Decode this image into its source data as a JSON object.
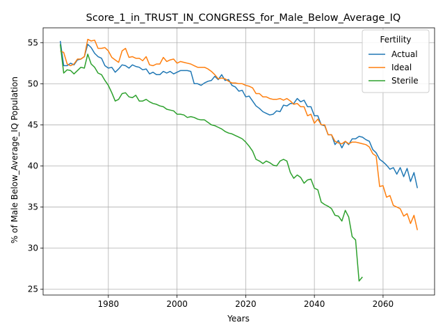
{
  "chart_data": {
    "type": "line",
    "title": "Score_1_in_TRUST_IN_CONGRESS_for_Male_Below_Average_IQ",
    "xlabel": "Years",
    "ylabel": "% of Male Below_Average_IQ Population",
    "xlim": [
      1961,
      2075
    ],
    "ylim": [
      24.3,
      56.8
    ],
    "xticks": [
      1980,
      2000,
      2020,
      2040,
      2060
    ],
    "yticks": [
      25,
      30,
      35,
      40,
      45,
      50,
      55
    ],
    "grid": true,
    "legend": {
      "title": "Fertility",
      "placement": "top-right"
    },
    "series": [
      {
        "name": "Actual",
        "color": "#1f77b4",
        "x": [
          1966,
          1967,
          1968,
          1969,
          1970,
          1971,
          1972,
          1973,
          1974,
          1975,
          1976,
          1977,
          1978,
          1979,
          1980,
          1981,
          1982,
          1983,
          1984,
          1985,
          1986,
          1987,
          1988,
          1989,
          1990,
          1991,
          1992,
          1993,
          1994,
          1995,
          1996,
          1997,
          1998,
          1999,
          2000,
          2001,
          2002,
          2003,
          2004,
          2005,
          2006,
          2007,
          2008,
          2009,
          2010,
          2011,
          2012,
          2013,
          2014,
          2015,
          2016,
          2017,
          2018,
          2019,
          2020,
          2021,
          2022,
          2023,
          2024,
          2025,
          2026,
          2027,
          2028,
          2029,
          2030,
          2031,
          2032,
          2033,
          2034,
          2035,
          2036,
          2037,
          2038,
          2039,
          2040,
          2041,
          2042,
          2043,
          2044,
          2045,
          2046,
          2047,
          2048,
          2049,
          2050,
          2051,
          2052,
          2053,
          2054,
          2055,
          2056,
          2057,
          2058,
          2059,
          2060,
          2061,
          2062,
          2063,
          2064,
          2065,
          2066,
          2067,
          2068,
          2069,
          2070
        ],
        "values": [
          55.2,
          52.2,
          52.2,
          52.5,
          52.3,
          52.9,
          53.0,
          53.3,
          54.8,
          54.4,
          53.7,
          53.3,
          53.1,
          52.2,
          51.9,
          52.0,
          51.4,
          51.8,
          52.3,
          52.2,
          51.9,
          52.3,
          52.1,
          52.0,
          51.7,
          51.8,
          51.2,
          51.4,
          51.1,
          51.1,
          51.5,
          51.3,
          51.5,
          51.2,
          51.4,
          51.6,
          51.6,
          51.6,
          51.5,
          50.0,
          50.0,
          49.8,
          50.1,
          50.3,
          50.4,
          50.9,
          50.5,
          51.1,
          50.4,
          50.5,
          49.8,
          49.6,
          49.1,
          49.2,
          48.4,
          48.5,
          47.9,
          47.3,
          47.0,
          46.6,
          46.4,
          46.2,
          46.3,
          46.7,
          46.6,
          47.4,
          47.3,
          47.6,
          47.6,
          48.2,
          47.8,
          48.0,
          47.2,
          47.2,
          46.1,
          46.1,
          45.0,
          44.9,
          43.8,
          43.8,
          42.6,
          43.1,
          42.2,
          43.0,
          42.6,
          43.3,
          43.3,
          43.6,
          43.5,
          43.2,
          43.0,
          42.0,
          41.6,
          40.8,
          40.5,
          40.1,
          39.6,
          39.8,
          39.0,
          39.8,
          38.7,
          39.7,
          38.1,
          39.2,
          37.3
        ]
      },
      {
        "name": "Ideal",
        "color": "#ff7f0e",
        "x": [
          1966,
          1967,
          1968,
          1969,
          1970,
          1971,
          1972,
          1973,
          1974,
          1975,
          1976,
          1977,
          1978,
          1979,
          1980,
          1981,
          1982,
          1983,
          1984,
          1985,
          1986,
          1987,
          1988,
          1989,
          1990,
          1991,
          1992,
          1993,
          1994,
          1995,
          1996,
          1997,
          1998,
          1999,
          2000,
          2001,
          2002,
          2003,
          2004,
          2005,
          2006,
          2007,
          2008,
          2009,
          2010,
          2011,
          2012,
          2013,
          2014,
          2015,
          2016,
          2017,
          2018,
          2019,
          2020,
          2021,
          2022,
          2023,
          2024,
          2025,
          2026,
          2027,
          2028,
          2029,
          2030,
          2031,
          2032,
          2033,
          2034,
          2035,
          2036,
          2037,
          2038,
          2039,
          2040,
          2041,
          2042,
          2043,
          2044,
          2045,
          2046,
          2047,
          2048,
          2049,
          2050,
          2051,
          2052,
          2053,
          2054,
          2055,
          2056,
          2057,
          2058,
          2059,
          2060,
          2061,
          2062,
          2063,
          2064,
          2065,
          2066,
          2067,
          2068,
          2069,
          2070
        ],
        "values": [
          54.0,
          53.8,
          52.4,
          52.2,
          52.4,
          53.0,
          53.0,
          53.3,
          55.4,
          55.2,
          55.3,
          54.3,
          54.3,
          54.4,
          54.0,
          53.2,
          52.9,
          52.6,
          54.0,
          54.3,
          53.2,
          53.3,
          53.1,
          53.1,
          52.8,
          53.3,
          52.3,
          52.2,
          52.4,
          52.4,
          53.2,
          52.7,
          52.9,
          53.0,
          52.5,
          52.7,
          52.6,
          52.5,
          52.4,
          52.2,
          52.0,
          52.0,
          52.0,
          51.8,
          51.5,
          51.1,
          50.6,
          50.7,
          50.6,
          50.3,
          50.1,
          50.1,
          50.0,
          50.0,
          49.8,
          49.7,
          49.5,
          48.8,
          48.8,
          48.4,
          48.4,
          48.2,
          48.1,
          48.1,
          48.2,
          48.0,
          48.2,
          47.9,
          47.5,
          47.6,
          47.2,
          47.2,
          46.1,
          46.3,
          45.2,
          45.7,
          45.0,
          45.0,
          43.8,
          43.8,
          43.0,
          42.8,
          42.7,
          43.0,
          42.7,
          42.9,
          42.9,
          42.8,
          42.7,
          42.6,
          42.3,
          41.5,
          41.2,
          37.5,
          37.6,
          36.2,
          36.4,
          35.2,
          35.0,
          34.8,
          33.9,
          34.2,
          33.0,
          34.0,
          32.2
        ]
      },
      {
        "name": "Sterile",
        "color": "#2ca02c",
        "x": [
          1966,
          1967,
          1968,
          1969,
          1970,
          1971,
          1972,
          1973,
          1974,
          1975,
          1976,
          1977,
          1978,
          1979,
          1980,
          1981,
          1982,
          1983,
          1984,
          1985,
          1986,
          1987,
          1988,
          1989,
          1990,
          1991,
          1992,
          1993,
          1994,
          1995,
          1996,
          1997,
          1998,
          1999,
          2000,
          2001,
          2002,
          2003,
          2004,
          2005,
          2006,
          2007,
          2008,
          2009,
          2010,
          2011,
          2012,
          2013,
          2014,
          2015,
          2016,
          2017,
          2018,
          2019,
          2020,
          2021,
          2022,
          2023,
          2024,
          2025,
          2026,
          2027,
          2028,
          2029,
          2030,
          2031,
          2032,
          2033,
          2034,
          2035,
          2036,
          2037,
          2038,
          2039,
          2040,
          2041,
          2042,
          2043,
          2044,
          2045,
          2046,
          2047,
          2048,
          2049,
          2050,
          2051,
          2052,
          2053,
          2054
        ],
        "values": [
          54.8,
          51.3,
          51.7,
          51.6,
          51.2,
          51.6,
          52.0,
          51.9,
          53.6,
          52.4,
          52.0,
          51.3,
          51.1,
          50.4,
          49.8,
          48.9,
          47.9,
          48.1,
          48.8,
          48.9,
          48.4,
          48.3,
          48.6,
          47.9,
          47.9,
          48.1,
          47.8,
          47.6,
          47.5,
          47.3,
          47.2,
          46.9,
          46.8,
          46.7,
          46.3,
          46.3,
          46.2,
          45.9,
          46.0,
          45.9,
          45.7,
          45.6,
          45.6,
          45.3,
          45.0,
          44.9,
          44.7,
          44.5,
          44.2,
          44.0,
          43.9,
          43.7,
          43.5,
          43.3,
          42.9,
          42.4,
          41.8,
          40.8,
          40.6,
          40.3,
          40.6,
          40.4,
          40.1,
          40.0,
          40.6,
          40.8,
          40.6,
          39.2,
          38.5,
          38.9,
          38.6,
          37.9,
          38.3,
          38.4,
          37.3,
          37.1,
          35.6,
          35.3,
          35.1,
          34.8,
          34.0,
          33.9,
          33.3,
          34.6,
          33.8,
          31.4,
          31.0,
          26.0,
          26.5
        ]
      }
    ]
  }
}
